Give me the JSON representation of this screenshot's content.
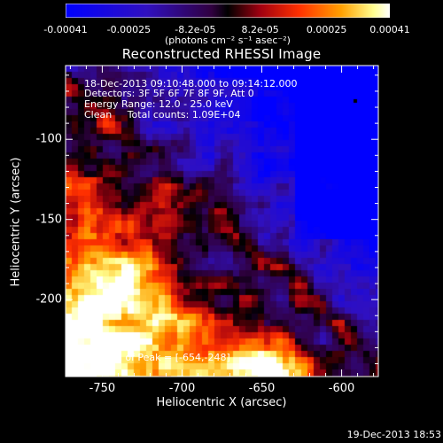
{
  "colorbar": {
    "ticks": [
      "-0.00041",
      "-0.00025",
      "-8.2e-05",
      "8.2e-05",
      "0.00025",
      "0.00041"
    ],
    "tick_values": [
      -0.00041,
      -0.00025,
      -8.2e-05,
      8.2e-05,
      0.00025,
      0.00041
    ],
    "unit_label": "(photons cm⁻² s⁻¹ asec⁻²)",
    "range": [
      -0.00041,
      0.00041
    ]
  },
  "info": {
    "time_range": "18-Dec-2013 09:10:48.000 to 09:14:12.000",
    "detectors": "Detectors: 3F 5F 6F 7F 8F 9F, Att 0",
    "energy": "Energy Range: 12.0 - 25.0 keV",
    "algorithm": "Clean     Total counts: 1.09E+04",
    "peak": "Position of Peak = [-654,-248]"
  },
  "footer": "19-Dec-2013 18:53",
  "chart_data": {
    "type": "heatmap",
    "title": "Reconstructed RHESSI Image",
    "xlabel": "Heliocentric X (arcsec)",
    "ylabel": "Heliocentric Y (arcsec)",
    "xlim": [
      -773,
      -577
    ],
    "ylim": [
      -248,
      -54
    ],
    "x_ticks": [
      -750,
      -700,
      -650,
      -600
    ],
    "y_ticks": [
      -100,
      -150,
      -200
    ],
    "x_tick_labels": [
      "-750",
      "-700",
      "-650",
      "-600"
    ],
    "y_tick_labels": [
      "-100",
      "-150",
      "-200"
    ],
    "colormap": "blue-black-red-yellow-white",
    "peak_position": [
      -654,
      -248
    ],
    "value_range": [
      -0.00041,
      0.00041
    ]
  }
}
